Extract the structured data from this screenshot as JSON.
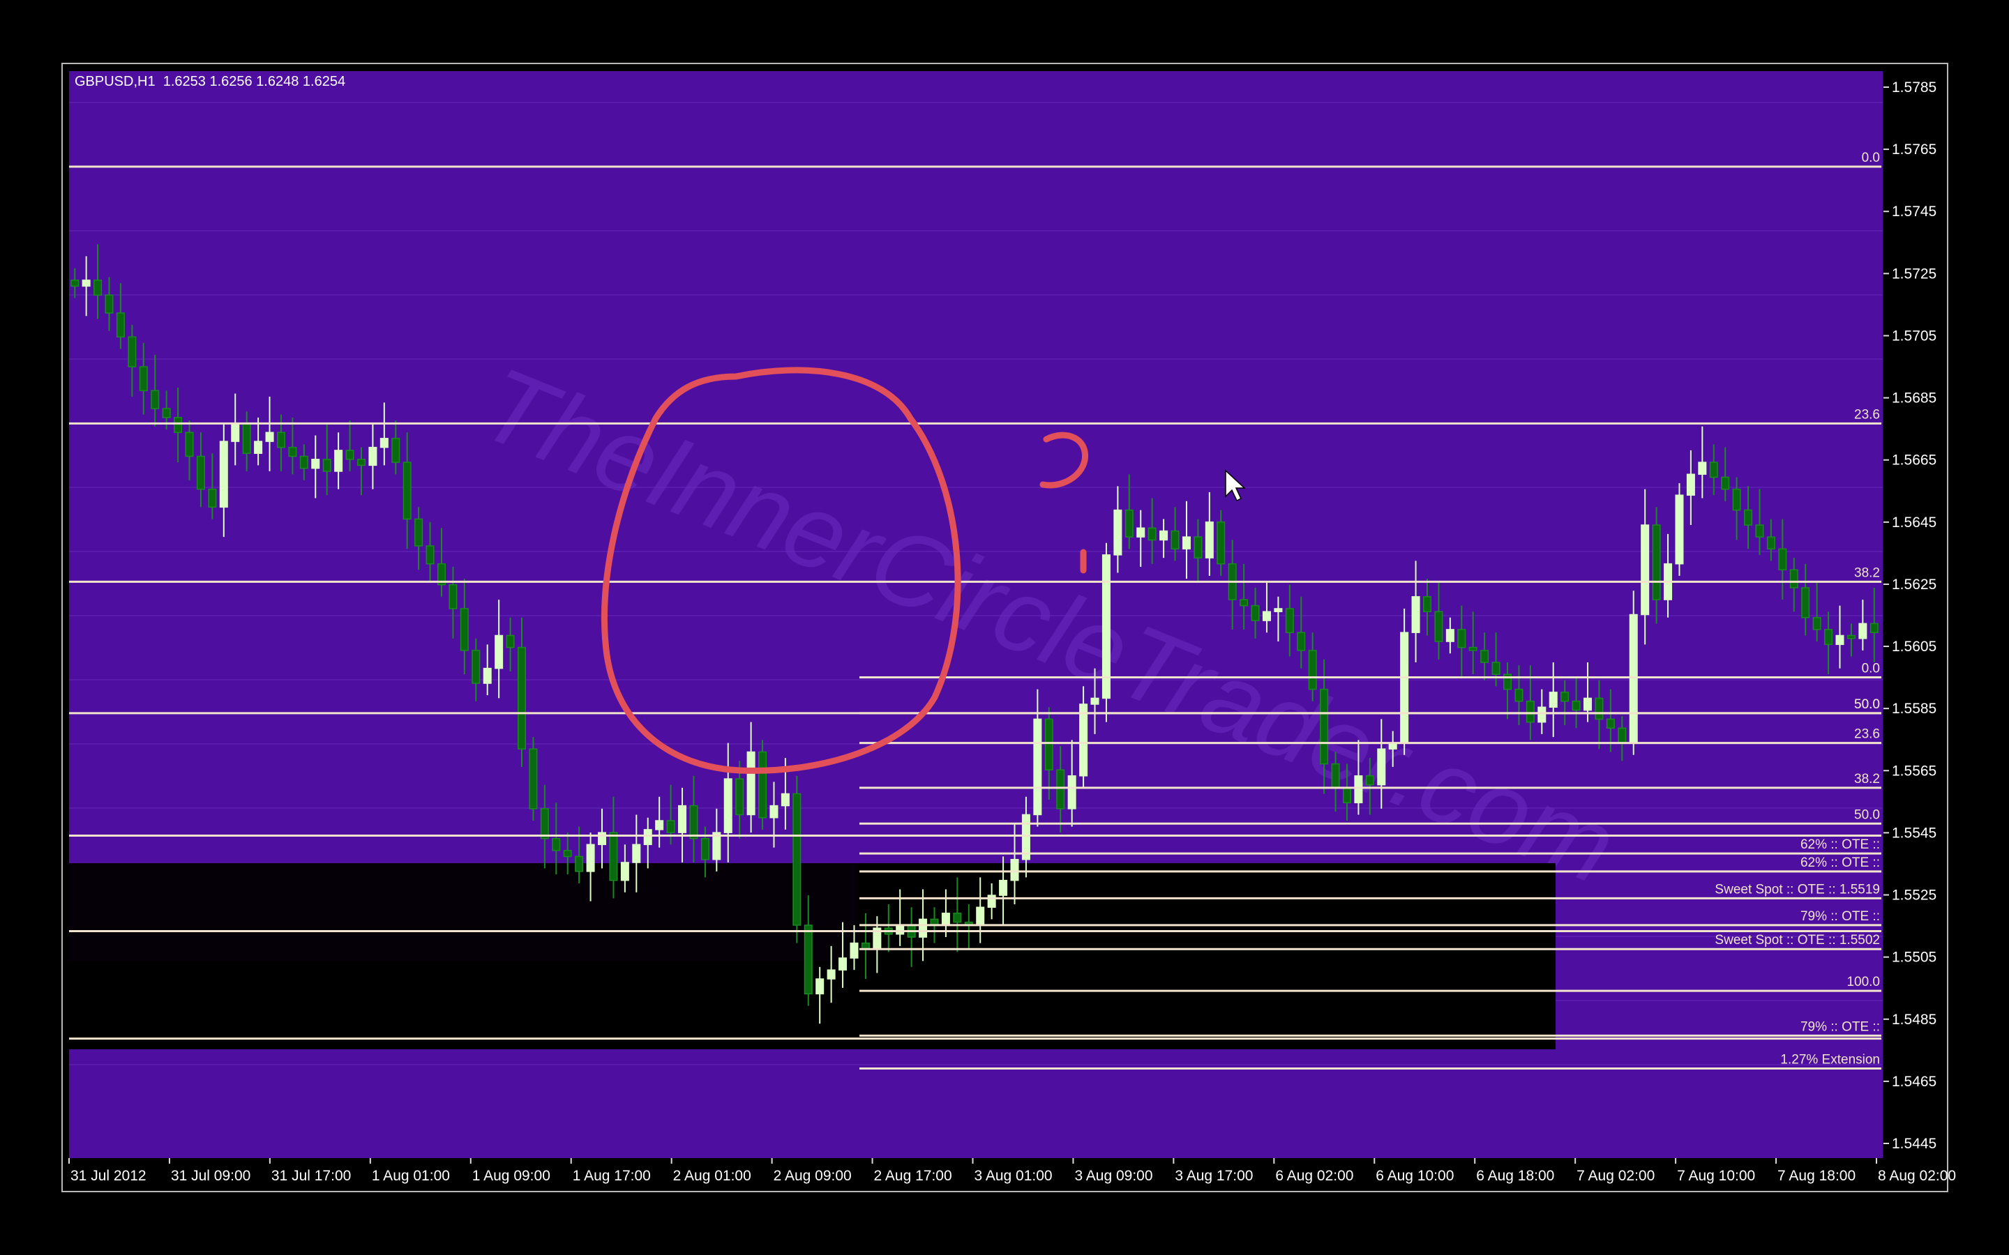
{
  "chart_data": {
    "type": "candlestick",
    "symbol_label": "GBPUSD,H1",
    "ohlc_label": "1.6253 1.6256 1.6248 1.6254",
    "y_ticks": [
      "1.5785",
      "1.5765",
      "1.5745",
      "1.5725",
      "1.5705",
      "1.5685",
      "1.5665",
      "1.5645",
      "1.5625",
      "1.5605",
      "1.5585",
      "1.5565",
      "1.5545",
      "1.5525",
      "1.5505",
      "1.5485",
      "1.5465",
      "1.5445"
    ],
    "y_range": [
      1.5433,
      1.5797
    ],
    "x_ticks": [
      "31 Jul 2012",
      "31 Jul 09:00",
      "31 Jul 17:00",
      "1 Aug 01:00",
      "1 Aug 09:00",
      "1 Aug 17:00",
      "2 Aug 01:00",
      "2 Aug 09:00",
      "2 Aug 17:00",
      "3 Aug 01:00",
      "3 Aug 09:00",
      "3 Aug 17:00",
      "6 Aug 02:00",
      "6 Aug 10:00",
      "6 Aug 18:00",
      "7 Aug 02:00",
      "7 Aug 10:00",
      "7 Aug 18:00",
      "8 Aug 02:00"
    ],
    "close_path": [
      1.5725,
      1.5727,
      1.5722,
      1.5716,
      1.5708,
      1.5698,
      1.569,
      1.5684,
      1.5681,
      1.5676,
      1.5668,
      1.5657,
      1.5651,
      1.5673,
      1.5679,
      1.5669,
      1.5673,
      1.5676,
      1.5671,
      1.5668,
      1.5664,
      1.5667,
      1.5663,
      1.567,
      1.5667,
      1.5665,
      1.5671,
      1.5674,
      1.5666,
      1.5647,
      1.5638,
      1.5632,
      1.5625,
      1.5617,
      1.5603,
      1.5592,
      1.5597,
      1.5608,
      1.5604,
      1.557,
      1.555,
      1.554,
      1.5536,
      1.5534,
      1.5529,
      1.5538,
      1.5542,
      1.5526,
      1.5532,
      1.5538,
      1.5543,
      1.5546,
      1.5542,
      1.5551,
      1.554,
      1.5533,
      1.5542,
      1.556,
      1.5548,
      1.5569,
      1.5547,
      1.5551,
      1.5555,
      1.5511,
      1.5488,
      1.5493,
      1.5496,
      1.55,
      1.5505,
      1.5503,
      1.551,
      1.5508,
      1.5511,
      1.5507,
      1.5513,
      1.5511,
      1.5515,
      1.5512,
      1.5511,
      1.5517,
      1.5521,
      1.5526,
      1.5533,
      1.5548,
      1.558,
      1.5563,
      1.555,
      1.5561,
      1.5585,
      1.5587,
      1.5635,
      1.565,
      1.5641,
      1.5644,
      1.564,
      1.5643,
      1.5637,
      1.5641,
      1.5634,
      1.5646,
      1.5632,
      1.562,
      1.5618,
      1.5613,
      1.5616,
      1.5617,
      1.5609,
      1.5603,
      1.559,
      1.5565,
      1.5557,
      1.5552,
      1.5561,
      1.5558,
      1.557,
      1.5572,
      1.5609,
      1.5621,
      1.5616,
      1.5606,
      1.561,
      1.5604,
      1.5603,
      1.5599,
      1.5595,
      1.559,
      1.5586,
      1.5579,
      1.5584,
      1.5589,
      1.5586,
      1.5583,
      1.5587,
      1.558,
      1.5577,
      1.5572,
      1.5615,
      1.5645,
      1.562,
      1.5632,
      1.5655,
      1.5662,
      1.5666,
      1.5661,
      1.5657,
      1.565,
      1.5645,
      1.5641,
      1.5637,
      1.563,
      1.5624,
      1.5614,
      1.561,
      1.5605,
      1.5608,
      1.5607,
      1.5612,
      1.5609
    ],
    "fib_full": [
      {
        "label": "0.0",
        "price": 1.5765
      },
      {
        "label": "23.6",
        "price": 1.5679
      },
      {
        "label": "38.2",
        "price": 1.5626
      },
      {
        "label": "50.0",
        "price": 1.5582
      },
      {
        "label": "",
        "price": 1.5541
      },
      {
        "label": "",
        "price": 1.5509
      },
      {
        "label": "",
        "price": 1.5473
      }
    ],
    "fib_swing": [
      {
        "label": "0.0",
        "price": 1.5594
      },
      {
        "label": "50.0",
        "price": 1.5582
      },
      {
        "label": "23.6",
        "price": 1.5572
      },
      {
        "label": "38.2",
        "price": 1.5557
      },
      {
        "label": "50.0",
        "price": 1.5545
      },
      {
        "label": "62% :: OTE ::",
        "price": 1.5535
      },
      {
        "label": "62% :: OTE ::",
        "price": 1.5529
      },
      {
        "label": "Sweet Spot :: OTE :: 1.5519",
        "price": 1.552
      },
      {
        "label": "79% :: OTE ::",
        "price": 1.5511
      },
      {
        "label": "Sweet Spot :: OTE :: 1.5502",
        "price": 1.5503
      },
      {
        "label": "100.0",
        "price": 1.5489
      },
      {
        "label": "79% :: OTE ::",
        "price": 1.5474
      },
      {
        "label": "1.27% Extension",
        "price": 1.5463
      }
    ],
    "watermark": "TheInnerCircleTrader.com"
  },
  "colors": {
    "background": "#4e0fa0",
    "bull_candle": "#dcffc4",
    "bear_candle": "#0a6a10",
    "fib_line": "#f2e4cc",
    "annotation": "#e2505a"
  }
}
